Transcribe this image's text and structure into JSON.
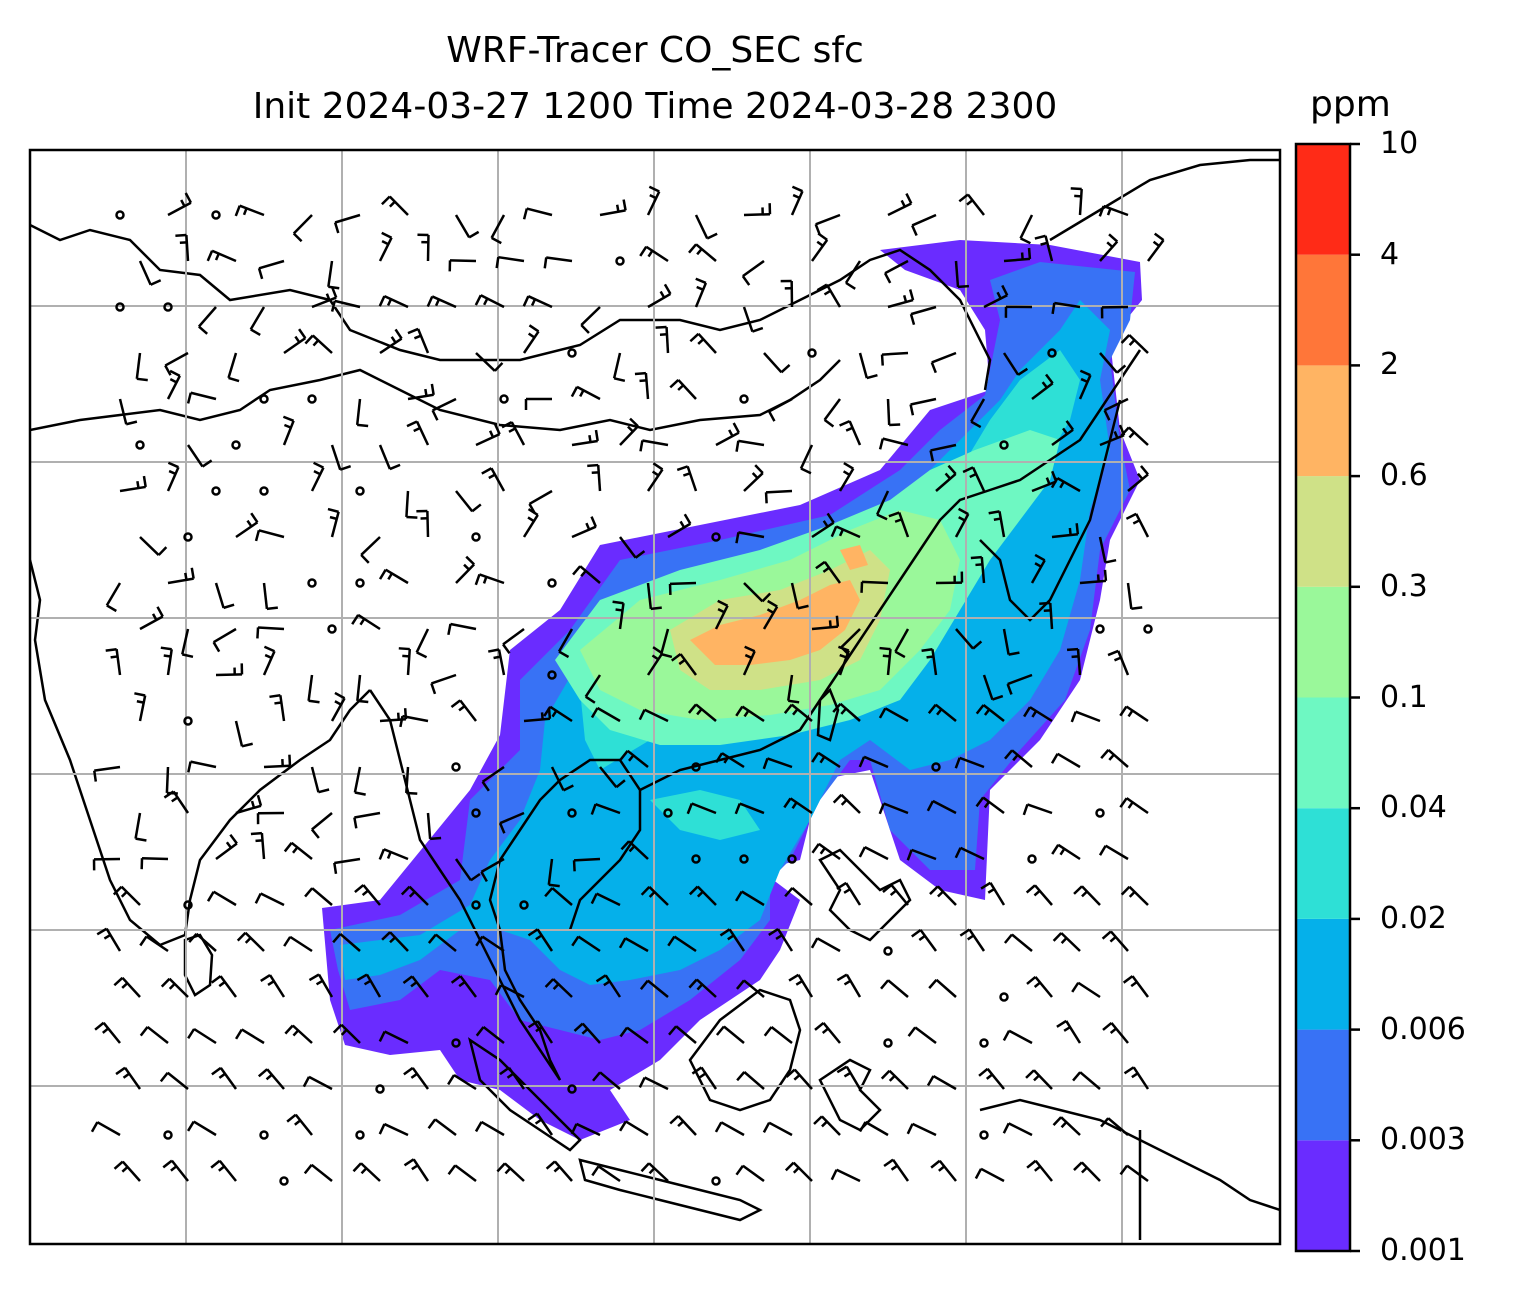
{
  "title": {
    "line1": "WRF-Tracer CO_SEC sfc",
    "line2": "Init 2024-03-27 1200 Time 2024-03-28 2300"
  },
  "colorbar": {
    "unit": "ppm",
    "levels": [
      "0.001",
      "0.003",
      "0.006",
      "0.02",
      "0.04",
      "0.1",
      "0.3",
      "0.6",
      "2",
      "4",
      "10"
    ],
    "colors": [
      "#6a2cff",
      "#3872f5",
      "#05b0ea",
      "#2ee0d6",
      "#6ef8c2",
      "#9af89a",
      "#cfe187",
      "#ffb463",
      "#ff7639",
      "#ff2b17"
    ]
  },
  "chart_data": {
    "type": "heatmap",
    "title": "WRF-Tracer CO_SEC sfc",
    "subtitle": "Init 2024-03-27 1200 Time 2024-03-28 2300",
    "colorbar_label": "ppm",
    "colorbar_ticks": [
      0.001,
      0.003,
      0.006,
      0.02,
      0.04,
      0.1,
      0.3,
      0.6,
      2,
      4,
      10
    ],
    "grid": true,
    "overlay": "wind barbs",
    "map_features": [
      "coastlines",
      "country borders"
    ]
  }
}
